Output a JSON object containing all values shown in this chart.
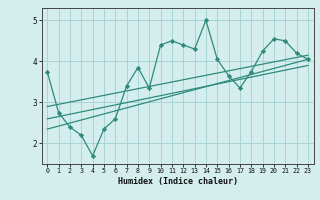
{
  "xlabel": "Humidex (Indice chaleur)",
  "ylabel": "",
  "bg_color": "#d4eeee",
  "line_color": "#2e8b7a",
  "grid_color": "#aad4d4",
  "xlim": [
    -0.5,
    23.5
  ],
  "ylim": [
    1.5,
    5.3
  ],
  "xticks": [
    0,
    1,
    2,
    3,
    4,
    5,
    6,
    7,
    8,
    9,
    10,
    11,
    12,
    13,
    14,
    15,
    16,
    17,
    18,
    19,
    20,
    21,
    22,
    23
  ],
  "yticks": [
    2,
    3,
    4,
    5
  ],
  "curve_x": [
    0,
    1,
    2,
    3,
    4,
    5,
    6,
    7,
    8,
    9,
    10,
    11,
    12,
    13,
    14,
    15,
    16,
    17,
    18,
    19,
    20,
    21,
    22,
    23
  ],
  "curve_y": [
    3.75,
    2.75,
    2.4,
    2.2,
    1.7,
    2.35,
    2.6,
    3.4,
    3.85,
    3.35,
    4.4,
    4.5,
    4.4,
    4.3,
    5.0,
    4.05,
    3.65,
    3.35,
    3.75,
    4.25,
    4.55,
    4.5,
    4.2,
    4.05
  ],
  "line1_x": [
    0,
    23
  ],
  "line1_y": [
    2.9,
    4.15
  ],
  "line2_x": [
    0,
    23
  ],
  "line2_y": [
    2.6,
    3.9
  ],
  "line3_x": [
    0,
    23
  ],
  "line3_y": [
    2.35,
    4.05
  ]
}
